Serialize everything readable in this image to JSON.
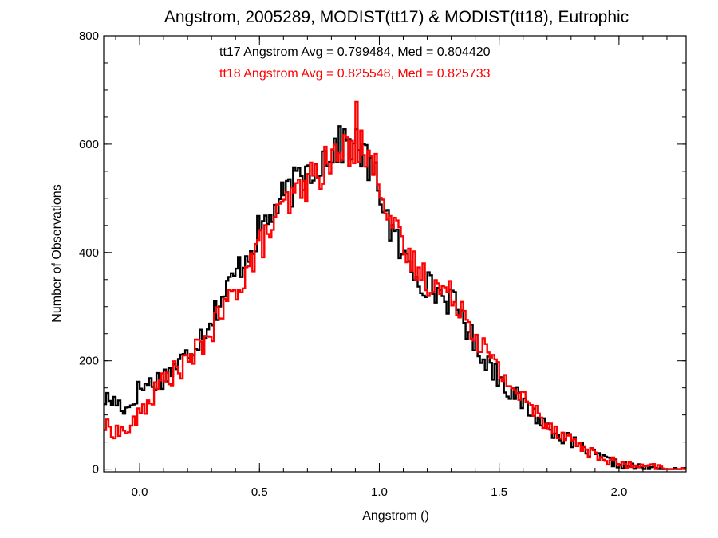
{
  "chart_data": {
    "type": "histogram-step",
    "title": "Angstrom, 2005289, MODIST(tt17) & MODIST(tt18), Eutrophic",
    "xlabel": "Angstrom ()",
    "ylabel": "Number of Observations",
    "xlim": [
      -0.15,
      2.28
    ],
    "ylim": [
      -5,
      800
    ],
    "x_ticks": [
      0.0,
      0.5,
      1.0,
      1.5,
      2.0
    ],
    "x_tick_labels": [
      "0.0",
      "0.5",
      "1.0",
      "1.5",
      "2.0"
    ],
    "y_ticks": [
      0,
      200,
      400,
      600,
      800
    ],
    "y_tick_labels": [
      "0",
      "200",
      "400",
      "600",
      "800"
    ],
    "x_minor_step": 0.1,
    "y_minor_step": 50,
    "grid": false,
    "bin_width": 0.01,
    "x_start": -0.15,
    "series": [
      {
        "stats_label": "tt17 Angstrom Avg = 0.799484, Med = 0.804420",
        "color": "#000000",
        "anchors": [
          [
            -0.15,
            130
          ],
          [
            -0.1,
            125
          ],
          [
            -0.05,
            110
          ],
          [
            0.0,
            150
          ],
          [
            0.1,
            170
          ],
          [
            0.2,
            210
          ],
          [
            0.3,
            280
          ],
          [
            0.4,
            360
          ],
          [
            0.5,
            440
          ],
          [
            0.6,
            500
          ],
          [
            0.7,
            550
          ],
          [
            0.8,
            590
          ],
          [
            0.88,
            605
          ],
          [
            0.92,
            590
          ],
          [
            1.0,
            520
          ],
          [
            1.05,
            440
          ],
          [
            1.1,
            390
          ],
          [
            1.2,
            340
          ],
          [
            1.3,
            310
          ],
          [
            1.35,
            280
          ],
          [
            1.4,
            230
          ],
          [
            1.5,
            170
          ],
          [
            1.6,
            120
          ],
          [
            1.7,
            80
          ],
          [
            1.8,
            50
          ],
          [
            1.9,
            25
          ],
          [
            2.0,
            8
          ],
          [
            2.1,
            3
          ],
          [
            2.15,
            1
          ],
          [
            2.2,
            0
          ],
          [
            2.28,
            0
          ]
        ]
      },
      {
        "stats_label": "tt18 Angstrom Avg = 0.825548, Med = 0.825733",
        "color": "#ff0000",
        "anchors": [
          [
            -0.15,
            80
          ],
          [
            -0.1,
            70
          ],
          [
            -0.05,
            70
          ],
          [
            0.0,
            100
          ],
          [
            0.1,
            165
          ],
          [
            0.2,
            195
          ],
          [
            0.3,
            255
          ],
          [
            0.4,
            330
          ],
          [
            0.5,
            410
          ],
          [
            0.6,
            480
          ],
          [
            0.7,
            530
          ],
          [
            0.8,
            570
          ],
          [
            0.88,
            595
          ],
          [
            0.92,
            600
          ],
          [
            1.0,
            540
          ],
          [
            1.05,
            460
          ],
          [
            1.1,
            400
          ],
          [
            1.2,
            350
          ],
          [
            1.3,
            320
          ],
          [
            1.35,
            300
          ],
          [
            1.4,
            250
          ],
          [
            1.5,
            180
          ],
          [
            1.6,
            130
          ],
          [
            1.7,
            85
          ],
          [
            1.8,
            55
          ],
          [
            1.9,
            25
          ],
          [
            2.0,
            10
          ],
          [
            2.1,
            3
          ],
          [
            2.15,
            5
          ],
          [
            2.2,
            0
          ],
          [
            2.28,
            0
          ]
        ]
      }
    ]
  }
}
